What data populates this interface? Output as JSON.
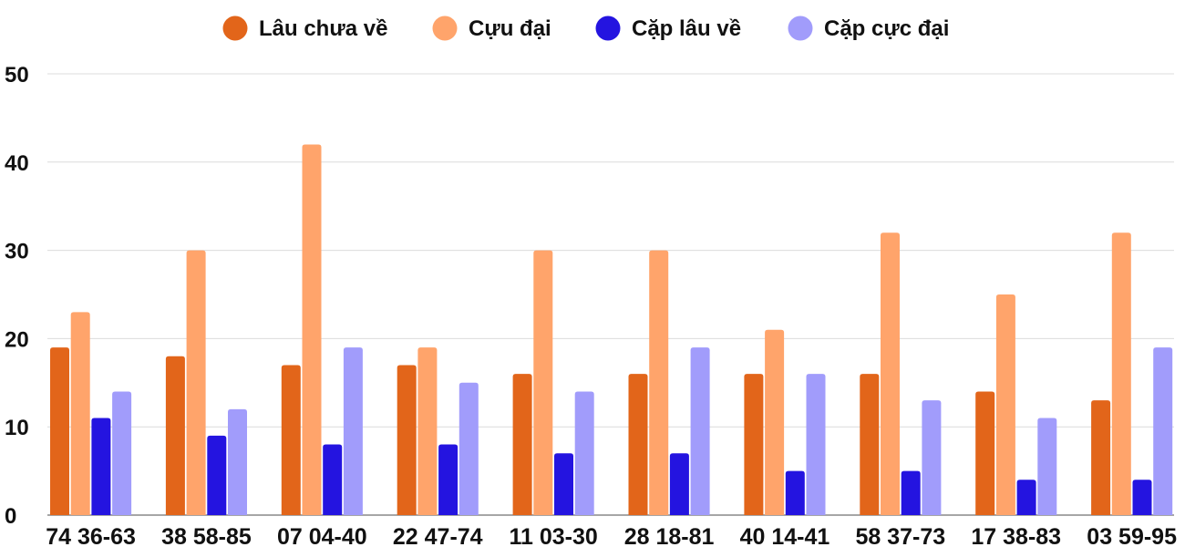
{
  "chart_data": {
    "type": "bar",
    "categories": [
      "74 36-63",
      "38 58-85",
      "07 04-40",
      "22 47-74",
      "11 03-30",
      "28 18-81",
      "40 14-41",
      "58 37-73",
      "17 38-83",
      "03 59-95"
    ],
    "series": [
      {
        "name": "Lâu chưa về",
        "color": "#e2651a",
        "values": [
          19,
          18,
          17,
          17,
          16,
          16,
          16,
          16,
          14,
          13
        ]
      },
      {
        "name": "Cựu đại",
        "color": "#ffa46b",
        "values": [
          23,
          30,
          42,
          19,
          30,
          30,
          21,
          32,
          25,
          32
        ]
      },
      {
        "name": "Cặp lâu về",
        "color": "#2414e0",
        "values": [
          11,
          9,
          8,
          8,
          7,
          7,
          5,
          5,
          4,
          4
        ]
      },
      {
        "name": "Cặp cực đại",
        "color": "#a19cfb",
        "values": [
          14,
          12,
          19,
          15,
          14,
          19,
          16,
          13,
          11,
          19
        ]
      }
    ],
    "ylim": [
      0,
      50
    ],
    "yticks": [
      0,
      10,
      20,
      30,
      40,
      50
    ],
    "grid": true,
    "legend_position": "top-center"
  }
}
